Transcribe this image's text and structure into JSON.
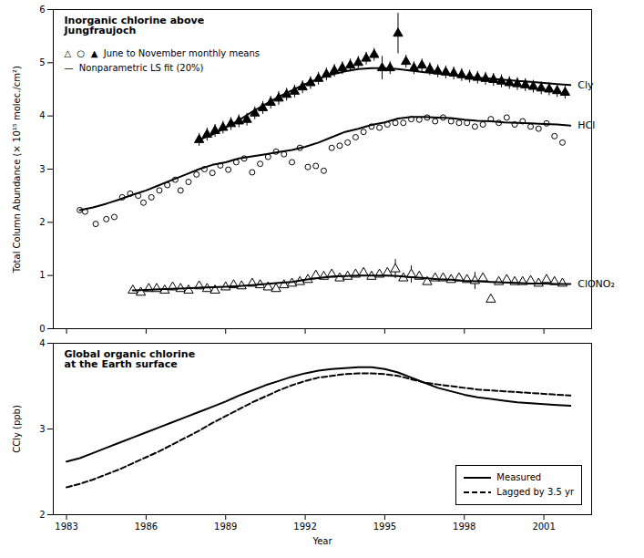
{
  "chart_data": [
    {
      "type": "scatter",
      "title": "Inorganic chlorine above\nJungfraujoch",
      "annotations": [
        "△  ○  ▲  June to November monthly means",
        "—  Nonparametric LS fit (20%)"
      ],
      "y_label": "Total Column Abundance (× 10¹⁵ molec./cm²)",
      "xlim": [
        1982.5,
        2002.8
      ],
      "xticks": [
        1983,
        1986,
        1989,
        1992,
        1995,
        1998,
        2001
      ],
      "ylim": [
        0,
        6
      ],
      "yticks": [
        0,
        1,
        2,
        3,
        4,
        5,
        6
      ],
      "tick_labels": "y",
      "series": [
        {
          "name": "HCl",
          "marker": "open circle",
          "x": [
            1983.5,
            1983.7,
            1984.1,
            1984.5,
            1984.8,
            1985.1,
            1985.4,
            1985.7,
            1985.9,
            1986.2,
            1986.5,
            1986.8,
            1987.1,
            1987.3,
            1987.6,
            1987.9,
            1988.2,
            1988.5,
            1988.8,
            1989.1,
            1989.4,
            1989.7,
            1990.0,
            1990.3,
            1990.6,
            1990.9,
            1991.2,
            1991.5,
            1991.8,
            1992.1,
            1992.4,
            1992.7,
            1993.0,
            1993.3,
            1993.6,
            1993.9,
            1994.2,
            1994.5,
            1994.8,
            1995.1,
            1995.4,
            1995.7,
            1996.0,
            1996.3,
            1996.6,
            1996.9,
            1997.2,
            1997.5,
            1997.8,
            1998.1,
            1998.4,
            1998.7,
            1999.0,
            1999.3,
            1999.6,
            1999.9,
            2000.2,
            2000.5,
            2000.8,
            2001.1,
            2001.4,
            2001.7
          ],
          "values": [
            2.23,
            2.2,
            1.97,
            2.06,
            2.1,
            2.47,
            2.54,
            2.5,
            2.37,
            2.47,
            2.6,
            2.7,
            2.8,
            2.6,
            2.76,
            2.9,
            3.0,
            2.93,
            3.07,
            2.99,
            3.13,
            3.2,
            2.94,
            3.1,
            3.23,
            3.33,
            3.28,
            3.13,
            3.4,
            3.04,
            3.06,
            2.97,
            3.4,
            3.44,
            3.5,
            3.6,
            3.7,
            3.8,
            3.78,
            3.84,
            3.87,
            3.87,
            3.94,
            3.93,
            3.97,
            3.9,
            3.97,
            3.9,
            3.87,
            3.87,
            3.8,
            3.84,
            3.94,
            3.87,
            3.97,
            3.84,
            3.9,
            3.8,
            3.76,
            3.86,
            3.62,
            3.5
          ],
          "fit": {
            "x": [
              1983.5,
              1984.0,
              1984.5,
              1985.0,
              1985.5,
              1986.0,
              1986.5,
              1987.0,
              1987.5,
              1988.0,
              1988.5,
              1989.0,
              1989.5,
              1990.0,
              1990.5,
              1991.0,
              1991.5,
              1992.0,
              1992.5,
              1993.0,
              1993.5,
              1994.0,
              1994.5,
              1995.0,
              1995.5,
              1996.0,
              1996.5,
              1997.0,
              1997.5,
              1998.0,
              1998.5,
              1999.0,
              1999.5,
              2000.0,
              2000.5,
              2001.0,
              2001.5,
              2002.0
            ],
            "values": [
              2.23,
              2.28,
              2.35,
              2.43,
              2.52,
              2.6,
              2.7,
              2.8,
              2.9,
              3.0,
              3.08,
              3.13,
              3.2,
              3.24,
              3.28,
              3.32,
              3.36,
              3.42,
              3.5,
              3.6,
              3.7,
              3.76,
              3.83,
              3.88,
              3.95,
              3.98,
              3.98,
              3.97,
              3.96,
              3.93,
              3.91,
              3.9,
              3.88,
              3.87,
              3.86,
              3.85,
              3.84,
              3.82
            ]
          }
        },
        {
          "name": "Cly",
          "marker": "filled triangle",
          "x": [
            1988.0,
            1988.3,
            1988.6,
            1988.9,
            1989.2,
            1989.5,
            1989.8,
            1990.1,
            1990.4,
            1990.7,
            1991.0,
            1991.3,
            1991.6,
            1991.9,
            1992.2,
            1992.5,
            1992.8,
            1993.1,
            1993.4,
            1993.7,
            1994.0,
            1994.3,
            1994.6,
            1994.9,
            1995.2,
            1995.5,
            1995.8,
            1996.1,
            1996.4,
            1996.7,
            1997.0,
            1997.3,
            1997.6,
            1997.9,
            1998.2,
            1998.5,
            1998.8,
            1999.1,
            1999.4,
            1999.7,
            2000.0,
            2000.3,
            2000.6,
            2000.9,
            2001.2,
            2001.5,
            2001.8
          ],
          "values": [
            3.55,
            3.65,
            3.72,
            3.78,
            3.85,
            3.9,
            3.93,
            4.05,
            4.15,
            4.25,
            4.33,
            4.4,
            4.46,
            4.54,
            4.62,
            4.7,
            4.78,
            4.85,
            4.9,
            4.95,
            5.0,
            5.08,
            5.15,
            4.9,
            4.9,
            5.55,
            5.02,
            4.9,
            4.95,
            4.88,
            4.84,
            4.82,
            4.8,
            4.77,
            4.74,
            4.72,
            4.7,
            4.68,
            4.65,
            4.62,
            4.6,
            4.58,
            4.55,
            4.52,
            4.5,
            4.47,
            4.44
          ],
          "error": [
            0.12,
            0.12,
            0.12,
            0.12,
            0.12,
            0.12,
            0.12,
            0.12,
            0.12,
            0.12,
            0.13,
            0.12,
            0.12,
            0.12,
            0.12,
            0.12,
            0.12,
            0.12,
            0.12,
            0.12,
            0.12,
            0.12,
            0.12,
            0.22,
            0.12,
            0.38,
            0.12,
            0.12,
            0.12,
            0.12,
            0.12,
            0.12,
            0.12,
            0.12,
            0.12,
            0.12,
            0.12,
            0.12,
            0.12,
            0.12,
            0.12,
            0.12,
            0.12,
            0.12,
            0.12,
            0.12,
            0.12
          ],
          "fit": {
            "x": [
              1988.0,
              1988.5,
              1989.0,
              1989.5,
              1990.0,
              1990.5,
              1991.0,
              1991.5,
              1992.0,
              1992.5,
              1993.0,
              1993.5,
              1994.0,
              1994.5,
              1995.0,
              1995.5,
              1996.0,
              1996.5,
              1997.0,
              1997.5,
              1998.0,
              1998.5,
              1999.0,
              1999.5,
              2000.0,
              2000.5,
              2001.0,
              2001.5,
              2002.0
            ],
            "values": [
              3.55,
              3.65,
              3.78,
              3.92,
              4.08,
              4.22,
              4.36,
              4.48,
              4.6,
              4.7,
              4.78,
              4.84,
              4.88,
              4.9,
              4.9,
              4.88,
              4.85,
              4.82,
              4.8,
              4.77,
              4.74,
              4.72,
              4.7,
              4.68,
              4.66,
              4.64,
              4.62,
              4.6,
              4.58
            ]
          }
        },
        {
          "name": "ClONO₂",
          "marker": "open triangle",
          "x": [
            1985.5,
            1985.8,
            1986.1,
            1986.4,
            1986.7,
            1987.0,
            1987.3,
            1987.6,
            1988.0,
            1988.3,
            1988.6,
            1989.0,
            1989.3,
            1989.6,
            1990.0,
            1990.3,
            1990.6,
            1990.9,
            1991.2,
            1991.5,
            1991.8,
            1992.1,
            1992.4,
            1992.7,
            1993.0,
            1993.3,
            1993.6,
            1993.9,
            1994.2,
            1994.5,
            1994.8,
            1995.1,
            1995.4,
            1995.7,
            1996.0,
            1996.3,
            1996.6,
            1996.9,
            1997.2,
            1997.5,
            1997.8,
            1998.1,
            1998.4,
            1998.7,
            1999.0,
            1999.3,
            1999.6,
            1999.9,
            2000.2,
            2000.5,
            2000.8,
            2001.1,
            2001.4,
            2001.7
          ],
          "values": [
            0.72,
            0.68,
            0.75,
            0.75,
            0.72,
            0.78,
            0.75,
            0.72,
            0.8,
            0.75,
            0.72,
            0.78,
            0.82,
            0.8,
            0.85,
            0.82,
            0.78,
            0.75,
            0.82,
            0.85,
            0.88,
            0.92,
            1.0,
            0.98,
            1.02,
            0.95,
            0.98,
            1.02,
            1.05,
            0.98,
            1.02,
            1.05,
            1.12,
            0.95,
            1.02,
            0.98,
            0.88,
            0.95,
            0.95,
            0.92,
            0.95,
            0.92,
            0.9,
            0.95,
            0.55,
            0.88,
            0.92,
            0.88,
            0.88,
            0.9,
            0.85,
            0.92,
            0.88,
            0.85
          ],
          "error": [
            0.0,
            0.0,
            0.0,
            0.0,
            0.0,
            0.0,
            0.0,
            0.0,
            0.0,
            0.0,
            0.0,
            0.0,
            0.0,
            0.0,
            0.0,
            0.0,
            0.0,
            0.0,
            0.0,
            0.0,
            0.0,
            0.0,
            0.0,
            0.0,
            0.0,
            0.0,
            0.0,
            0.0,
            0.0,
            0.0,
            0.0,
            0.0,
            0.18,
            0.0,
            0.16,
            0.0,
            0.0,
            0.0,
            0.0,
            0.0,
            0.0,
            0.0,
            0.16,
            0.0,
            0.0,
            0.0,
            0.0,
            0.0,
            0.0,
            0.0,
            0.0,
            0.0,
            0.0,
            0.0
          ],
          "fit": {
            "x": [
              1985.5,
              1986.0,
              1986.5,
              1987.0,
              1987.5,
              1988.0,
              1988.5,
              1989.0,
              1989.5,
              1990.0,
              1990.5,
              1991.0,
              1991.5,
              1992.0,
              1992.5,
              1993.0,
              1993.5,
              1994.0,
              1994.5,
              1995.0,
              1995.5,
              1996.0,
              1996.5,
              1997.0,
              1997.5,
              1998.0,
              1998.5,
              1999.0,
              1999.5,
              2000.0,
              2000.5,
              2001.0,
              2001.5,
              2002.0
            ],
            "values": [
              0.72,
              0.73,
              0.74,
              0.75,
              0.76,
              0.77,
              0.78,
              0.79,
              0.8,
              0.82,
              0.84,
              0.86,
              0.88,
              0.92,
              0.95,
              0.98,
              0.99,
              1.0,
              1.0,
              1.0,
              0.99,
              0.97,
              0.95,
              0.93,
              0.92,
              0.9,
              0.89,
              0.88,
              0.87,
              0.86,
              0.85,
              0.85,
              0.84,
              0.84
            ]
          }
        }
      ]
    },
    {
      "type": "line",
      "title": "Global organic chlorine\nat the Earth surface",
      "x_label": "Year",
      "y_label": "CCly (ppb)",
      "xlim": [
        1982.5,
        2002.8
      ],
      "xticks": [
        1983,
        1986,
        1989,
        1992,
        1995,
        1998,
        2001
      ],
      "ylim": [
        2,
        4
      ],
      "yticks": [
        2,
        3,
        4
      ],
      "legend": "lower right",
      "x": [
        1983.0,
        1983.5,
        1984.0,
        1984.5,
        1985.0,
        1985.5,
        1986.0,
        1986.5,
        1987.0,
        1987.5,
        1988.0,
        1988.5,
        1989.0,
        1989.5,
        1990.0,
        1990.5,
        1991.0,
        1991.5,
        1992.0,
        1992.5,
        1993.0,
        1993.5,
        1994.0,
        1994.5,
        1995.0,
        1995.5,
        1996.0,
        1996.5,
        1997.0,
        1997.5,
        1998.0,
        1998.5,
        1999.0,
        1999.5,
        2000.0,
        2000.5,
        2001.0,
        2001.5,
        2002.0
      ],
      "series": [
        {
          "name": "Measured",
          "line_style": "solid",
          "values": [
            2.62,
            2.66,
            2.72,
            2.78,
            2.84,
            2.9,
            2.96,
            3.02,
            3.08,
            3.14,
            3.2,
            3.26,
            3.32,
            3.39,
            3.45,
            3.51,
            3.56,
            3.61,
            3.65,
            3.68,
            3.7,
            3.71,
            3.72,
            3.72,
            3.7,
            3.66,
            3.6,
            3.54,
            3.48,
            3.44,
            3.4,
            3.37,
            3.35,
            3.33,
            3.31,
            3.3,
            3.29,
            3.28,
            3.27
          ]
        },
        {
          "name": "Lagged by 3.5 yr",
          "line_style": "dashed",
          "values": [
            2.32,
            2.36,
            2.41,
            2.47,
            2.53,
            2.6,
            2.67,
            2.74,
            2.82,
            2.9,
            2.98,
            3.07,
            3.15,
            3.23,
            3.31,
            3.38,
            3.45,
            3.51,
            3.56,
            3.6,
            3.62,
            3.64,
            3.65,
            3.65,
            3.64,
            3.62,
            3.58,
            3.54,
            3.52,
            3.5,
            3.48,
            3.46,
            3.45,
            3.44,
            3.43,
            3.42,
            3.41,
            3.4,
            3.39
          ]
        }
      ]
    }
  ]
}
